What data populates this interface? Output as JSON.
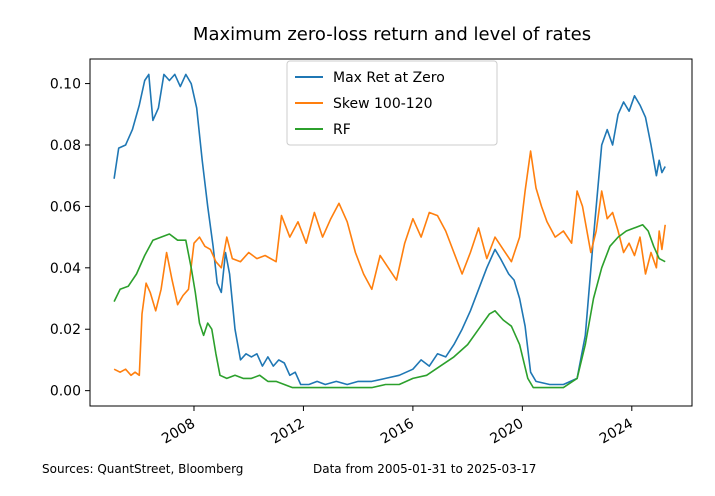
{
  "chart_data": {
    "type": "line",
    "title": "Maximum zero-loss return and level of rates",
    "xlabel": "",
    "ylabel": "",
    "xlim": [
      2004.2,
      2026.2
    ],
    "ylim": [
      -0.005,
      0.108
    ],
    "x_ticks": [
      2008,
      2012,
      2016,
      2020,
      2024
    ],
    "x_tick_labels": [
      "2008",
      "2012",
      "2016",
      "2020",
      "2024"
    ],
    "y_ticks": [
      0.0,
      0.02,
      0.04,
      0.06,
      0.08,
      0.1
    ],
    "y_tick_labels": [
      "0.00",
      "0.02",
      "0.04",
      "0.06",
      "0.08",
      "0.10"
    ],
    "grid": false,
    "legend_position": "top-center",
    "series": [
      {
        "name": "Max Ret at Zero",
        "color": "#1f77b4",
        "points": [
          [
            2005.08,
            0.069
          ],
          [
            2005.25,
            0.079
          ],
          [
            2005.5,
            0.08
          ],
          [
            2005.75,
            0.085
          ],
          [
            2006.0,
            0.093
          ],
          [
            2006.2,
            0.101
          ],
          [
            2006.35,
            0.103
          ],
          [
            2006.5,
            0.088
          ],
          [
            2006.7,
            0.092
          ],
          [
            2006.9,
            0.103
          ],
          [
            2007.1,
            0.101
          ],
          [
            2007.3,
            0.103
          ],
          [
            2007.5,
            0.099
          ],
          [
            2007.7,
            0.103
          ],
          [
            2007.9,
            0.1
          ],
          [
            2008.1,
            0.092
          ],
          [
            2008.3,
            0.075
          ],
          [
            2008.5,
            0.06
          ],
          [
            2008.7,
            0.047
          ],
          [
            2008.85,
            0.035
          ],
          [
            2009.0,
            0.032
          ],
          [
            2009.15,
            0.045
          ],
          [
            2009.3,
            0.038
          ],
          [
            2009.5,
            0.02
          ],
          [
            2009.7,
            0.01
          ],
          [
            2009.9,
            0.012
          ],
          [
            2010.1,
            0.011
          ],
          [
            2010.3,
            0.012
          ],
          [
            2010.5,
            0.008
          ],
          [
            2010.7,
            0.011
          ],
          [
            2010.9,
            0.008
          ],
          [
            2011.1,
            0.01
          ],
          [
            2011.3,
            0.009
          ],
          [
            2011.5,
            0.005
          ],
          [
            2011.7,
            0.006
          ],
          [
            2011.9,
            0.002
          ],
          [
            2012.2,
            0.002
          ],
          [
            2012.5,
            0.003
          ],
          [
            2012.8,
            0.002
          ],
          [
            2013.2,
            0.003
          ],
          [
            2013.6,
            0.002
          ],
          [
            2014.0,
            0.003
          ],
          [
            2014.5,
            0.003
          ],
          [
            2015.0,
            0.004
          ],
          [
            2015.5,
            0.005
          ],
          [
            2016.0,
            0.007
          ],
          [
            2016.3,
            0.01
          ],
          [
            2016.6,
            0.008
          ],
          [
            2016.9,
            0.012
          ],
          [
            2017.2,
            0.011
          ],
          [
            2017.5,
            0.015
          ],
          [
            2017.8,
            0.02
          ],
          [
            2018.1,
            0.026
          ],
          [
            2018.4,
            0.033
          ],
          [
            2018.7,
            0.04
          ],
          [
            2019.0,
            0.046
          ],
          [
            2019.2,
            0.043
          ],
          [
            2019.5,
            0.038
          ],
          [
            2019.7,
            0.036
          ],
          [
            2019.9,
            0.03
          ],
          [
            2020.1,
            0.021
          ],
          [
            2020.3,
            0.006
          ],
          [
            2020.5,
            0.003
          ],
          [
            2021.0,
            0.002
          ],
          [
            2021.5,
            0.002
          ],
          [
            2022.0,
            0.004
          ],
          [
            2022.3,
            0.018
          ],
          [
            2022.6,
            0.05
          ],
          [
            2022.9,
            0.08
          ],
          [
            2023.1,
            0.085
          ],
          [
            2023.3,
            0.08
          ],
          [
            2023.5,
            0.09
          ],
          [
            2023.7,
            0.094
          ],
          [
            2023.9,
            0.091
          ],
          [
            2024.1,
            0.096
          ],
          [
            2024.3,
            0.093
          ],
          [
            2024.5,
            0.089
          ],
          [
            2024.7,
            0.08
          ],
          [
            2024.9,
            0.07
          ],
          [
            2025.0,
            0.075
          ],
          [
            2025.1,
            0.071
          ],
          [
            2025.22,
            0.073
          ]
        ]
      },
      {
        "name": "Skew 100-120",
        "color": "#ff7f0e",
        "points": [
          [
            2005.08,
            0.007
          ],
          [
            2005.3,
            0.006
          ],
          [
            2005.5,
            0.007
          ],
          [
            2005.7,
            0.005
          ],
          [
            2005.85,
            0.006
          ],
          [
            2006.0,
            0.005
          ],
          [
            2006.1,
            0.025
          ],
          [
            2006.25,
            0.035
          ],
          [
            2006.4,
            0.032
          ],
          [
            2006.6,
            0.026
          ],
          [
            2006.8,
            0.033
          ],
          [
            2007.0,
            0.045
          ],
          [
            2007.2,
            0.036
          ],
          [
            2007.4,
            0.028
          ],
          [
            2007.6,
            0.031
          ],
          [
            2007.8,
            0.033
          ],
          [
            2008.0,
            0.048
          ],
          [
            2008.2,
            0.05
          ],
          [
            2008.4,
            0.047
          ],
          [
            2008.6,
            0.046
          ],
          [
            2008.8,
            0.042
          ],
          [
            2009.0,
            0.04
          ],
          [
            2009.2,
            0.05
          ],
          [
            2009.4,
            0.043
          ],
          [
            2009.7,
            0.042
          ],
          [
            2010.0,
            0.045
          ],
          [
            2010.3,
            0.043
          ],
          [
            2010.6,
            0.044
          ],
          [
            2011.0,
            0.042
          ],
          [
            2011.2,
            0.057
          ],
          [
            2011.5,
            0.05
          ],
          [
            2011.8,
            0.055
          ],
          [
            2012.1,
            0.048
          ],
          [
            2012.4,
            0.058
          ],
          [
            2012.7,
            0.05
          ],
          [
            2013.0,
            0.056
          ],
          [
            2013.3,
            0.061
          ],
          [
            2013.6,
            0.055
          ],
          [
            2013.9,
            0.045
          ],
          [
            2014.2,
            0.038
          ],
          [
            2014.5,
            0.033
          ],
          [
            2014.8,
            0.044
          ],
          [
            2015.1,
            0.04
          ],
          [
            2015.4,
            0.036
          ],
          [
            2015.7,
            0.048
          ],
          [
            2016.0,
            0.056
          ],
          [
            2016.3,
            0.05
          ],
          [
            2016.6,
            0.058
          ],
          [
            2016.9,
            0.057
          ],
          [
            2017.2,
            0.052
          ],
          [
            2017.5,
            0.045
          ],
          [
            2017.8,
            0.038
          ],
          [
            2018.1,
            0.045
          ],
          [
            2018.4,
            0.053
          ],
          [
            2018.7,
            0.043
          ],
          [
            2019.0,
            0.05
          ],
          [
            2019.3,
            0.046
          ],
          [
            2019.6,
            0.042
          ],
          [
            2019.9,
            0.05
          ],
          [
            2020.1,
            0.065
          ],
          [
            2020.3,
            0.078
          ],
          [
            2020.5,
            0.066
          ],
          [
            2020.7,
            0.06
          ],
          [
            2020.9,
            0.055
          ],
          [
            2021.2,
            0.05
          ],
          [
            2021.5,
            0.052
          ],
          [
            2021.8,
            0.048
          ],
          [
            2022.0,
            0.065
          ],
          [
            2022.2,
            0.06
          ],
          [
            2022.5,
            0.045
          ],
          [
            2022.7,
            0.052
          ],
          [
            2022.9,
            0.065
          ],
          [
            2023.1,
            0.056
          ],
          [
            2023.3,
            0.058
          ],
          [
            2023.5,
            0.052
          ],
          [
            2023.7,
            0.045
          ],
          [
            2023.9,
            0.048
          ],
          [
            2024.1,
            0.044
          ],
          [
            2024.3,
            0.05
          ],
          [
            2024.5,
            0.038
          ],
          [
            2024.7,
            0.045
          ],
          [
            2024.9,
            0.04
          ],
          [
            2025.0,
            0.052
          ],
          [
            2025.1,
            0.046
          ],
          [
            2025.22,
            0.054
          ]
        ]
      },
      {
        "name": "RF",
        "color": "#2ca02c",
        "points": [
          [
            2005.08,
            0.029
          ],
          [
            2005.3,
            0.033
          ],
          [
            2005.6,
            0.034
          ],
          [
            2005.9,
            0.038
          ],
          [
            2006.2,
            0.044
          ],
          [
            2006.5,
            0.049
          ],
          [
            2006.8,
            0.05
          ],
          [
            2007.1,
            0.051
          ],
          [
            2007.4,
            0.049
          ],
          [
            2007.7,
            0.049
          ],
          [
            2007.9,
            0.04
          ],
          [
            2008.05,
            0.032
          ],
          [
            2008.2,
            0.022
          ],
          [
            2008.35,
            0.018
          ],
          [
            2008.5,
            0.022
          ],
          [
            2008.65,
            0.02
          ],
          [
            2008.8,
            0.012
          ],
          [
            2008.95,
            0.005
          ],
          [
            2009.2,
            0.004
          ],
          [
            2009.5,
            0.005
          ],
          [
            2009.8,
            0.004
          ],
          [
            2010.1,
            0.004
          ],
          [
            2010.4,
            0.005
          ],
          [
            2010.7,
            0.003
          ],
          [
            2011.0,
            0.003
          ],
          [
            2011.3,
            0.002
          ],
          [
            2011.6,
            0.001
          ],
          [
            2012.0,
            0.001
          ],
          [
            2012.5,
            0.001
          ],
          [
            2013.0,
            0.001
          ],
          [
            2013.5,
            0.001
          ],
          [
            2014.0,
            0.001
          ],
          [
            2014.5,
            0.001
          ],
          [
            2015.0,
            0.002
          ],
          [
            2015.5,
            0.002
          ],
          [
            2016.0,
            0.004
          ],
          [
            2016.5,
            0.005
          ],
          [
            2017.0,
            0.008
          ],
          [
            2017.5,
            0.011
          ],
          [
            2018.0,
            0.015
          ],
          [
            2018.4,
            0.02
          ],
          [
            2018.8,
            0.025
          ],
          [
            2019.0,
            0.026
          ],
          [
            2019.3,
            0.023
          ],
          [
            2019.6,
            0.021
          ],
          [
            2019.9,
            0.015
          ],
          [
            2020.2,
            0.004
          ],
          [
            2020.4,
            0.001
          ],
          [
            2021.0,
            0.001
          ],
          [
            2021.5,
            0.001
          ],
          [
            2022.0,
            0.004
          ],
          [
            2022.3,
            0.015
          ],
          [
            2022.6,
            0.03
          ],
          [
            2022.9,
            0.04
          ],
          [
            2023.2,
            0.047
          ],
          [
            2023.5,
            0.05
          ],
          [
            2023.8,
            0.052
          ],
          [
            2024.1,
            0.053
          ],
          [
            2024.4,
            0.054
          ],
          [
            2024.6,
            0.052
          ],
          [
            2024.8,
            0.047
          ],
          [
            2025.0,
            0.043
          ],
          [
            2025.22,
            0.042
          ]
        ]
      }
    ]
  },
  "footer": {
    "sources": "Sources: QuantStreet, Bloomberg",
    "data_range": "Data from 2005-01-31 to 2025-03-17"
  }
}
